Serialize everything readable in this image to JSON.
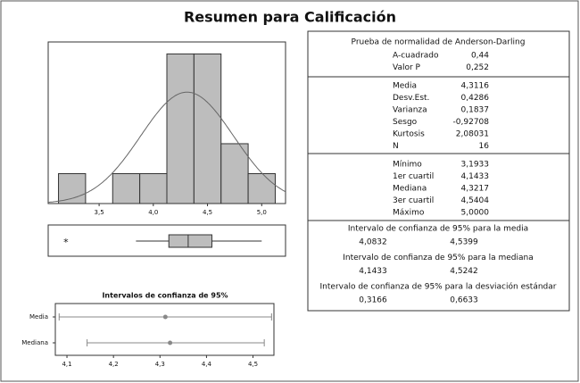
{
  "title": "Resumen para Calificación",
  "chart_data": [
    {
      "type": "histogram",
      "bins": [
        3.125,
        3.375,
        3.625,
        3.875,
        4.125,
        4.375,
        4.625,
        4.875,
        5.125
      ],
      "values": [
        1,
        0,
        1,
        1,
        5,
        5,
        2,
        1
      ],
      "color": "#bdbdbd",
      "xlim": [
        3.03,
        5.22
      ],
      "ylim": [
        0,
        5.4
      ],
      "xticks": [
        {
          "value": 3.5,
          "label": "3,5"
        },
        {
          "value": 4.0,
          "label": "4,0"
        },
        {
          "value": 4.5,
          "label": "4,5"
        },
        {
          "value": 5.0,
          "label": "5,0"
        }
      ],
      "fit_mean": 4.3116,
      "fit_sd": 0.4286,
      "fit_n": 16
    },
    {
      "type": "box",
      "xlim": [
        3.03,
        5.22
      ],
      "outlier": 3.1933,
      "whisker_low": 3.84,
      "q1": 4.1433,
      "median": 4.3217,
      "q3": 4.5404,
      "max": 5.0
    },
    {
      "type": "interval",
      "title": "Intervalos de confianza de 95%",
      "categories": [
        "Media",
        "Mediana"
      ],
      "values": [
        4.3116,
        4.3217
      ],
      "low": [
        4.0832,
        4.1433
      ],
      "high": [
        4.5399,
        4.5242
      ],
      "color": "#888888",
      "xlim": [
        4.075,
        4.545
      ],
      "xticks": [
        {
          "value": 4.1,
          "label": "4,1"
        },
        {
          "value": 4.2,
          "label": "4,2"
        },
        {
          "value": 4.3,
          "label": "4,3"
        },
        {
          "value": 4.4,
          "label": "4,4"
        },
        {
          "value": 4.5,
          "label": "4,5"
        }
      ]
    }
  ],
  "stats": {
    "normality": {
      "title": "Prueba de normalidad de Anderson-Darling",
      "rows": [
        [
          "A-cuadrado",
          "0,44"
        ],
        [
          "Valor P",
          "0,252"
        ]
      ]
    },
    "moments": {
      "rows": [
        [
          "Media",
          "4,3116"
        ],
        [
          "Desv.Est.",
          "0,4286"
        ],
        [
          "Varianza",
          "0,1837"
        ],
        [
          "Sesgo",
          "-0,92708"
        ],
        [
          "Kurtosis",
          "2,08031"
        ],
        [
          "N",
          "16"
        ]
      ]
    },
    "quantiles": {
      "rows": [
        [
          "Mínimo",
          "3,1933"
        ],
        [
          "1er cuartil",
          "4,1433"
        ],
        [
          "Mediana",
          "4,3217"
        ],
        [
          "3er cuartil",
          "4,5404"
        ],
        [
          "Máximo",
          "5,0000"
        ]
      ]
    },
    "intervals": [
      {
        "title": "Intervalo de confianza de 95% para la media",
        "low": "4,0832",
        "high": "4,5399"
      },
      {
        "title": "Intervalo de confianza de 95% para la mediana",
        "low": "4,1433",
        "high": "4,5242"
      },
      {
        "title": "Intervalo de confianza de 95% para la desviación estándar",
        "low": "0,3166",
        "high": "0,6633"
      }
    ]
  }
}
